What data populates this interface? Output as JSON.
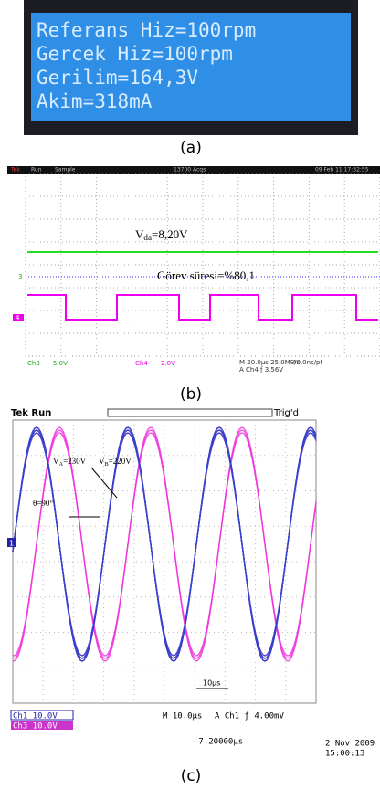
{
  "panel_a": {
    "lines": [
      "Referans Hiz=100rpm",
      "Gercek Hiz=100rpm",
      "Gerilim=164,3V",
      "Akim=318mA"
    ],
    "caption": "(a)"
  },
  "panel_b": {
    "header": [
      "Tek",
      "Run",
      "Sample",
      "13700 Acqs",
      "09 Feb 11 17:32:55"
    ],
    "annotation_1": {
      "main": "V",
      "sub": "da",
      "rest": "=8,20V"
    },
    "annotation_2": "Görev süresi=%80,1",
    "markers": [
      "3",
      "4"
    ],
    "footer": [
      "Ch3",
      "5.0V",
      "Ch4",
      "2.0V",
      "M 20.0µs 25.0MS/s",
      "40.0ns/pt",
      "A Ch4 ƒ 3.56V"
    ],
    "caption": "(b)"
  },
  "panel_c": {
    "header": [
      "Tek Run",
      "Trig'd"
    ],
    "label_a": {
      "main": "V",
      "sub": "A",
      "rest": "=230V"
    },
    "label_b": {
      "main": "V",
      "sub": "B",
      "rest": "=220V"
    },
    "label_theta": "θ=90°",
    "scale_label": "10µs",
    "marker": "1",
    "footer": [
      "Ch1 10.0V",
      "Ch3 10.0V",
      "M 10.0µs",
      "A Ch1 ƒ 4.00mV",
      "2 Nov 2009",
      "15:00:13",
      "-7.20000µs"
    ],
    "caption": "(c)"
  }
}
